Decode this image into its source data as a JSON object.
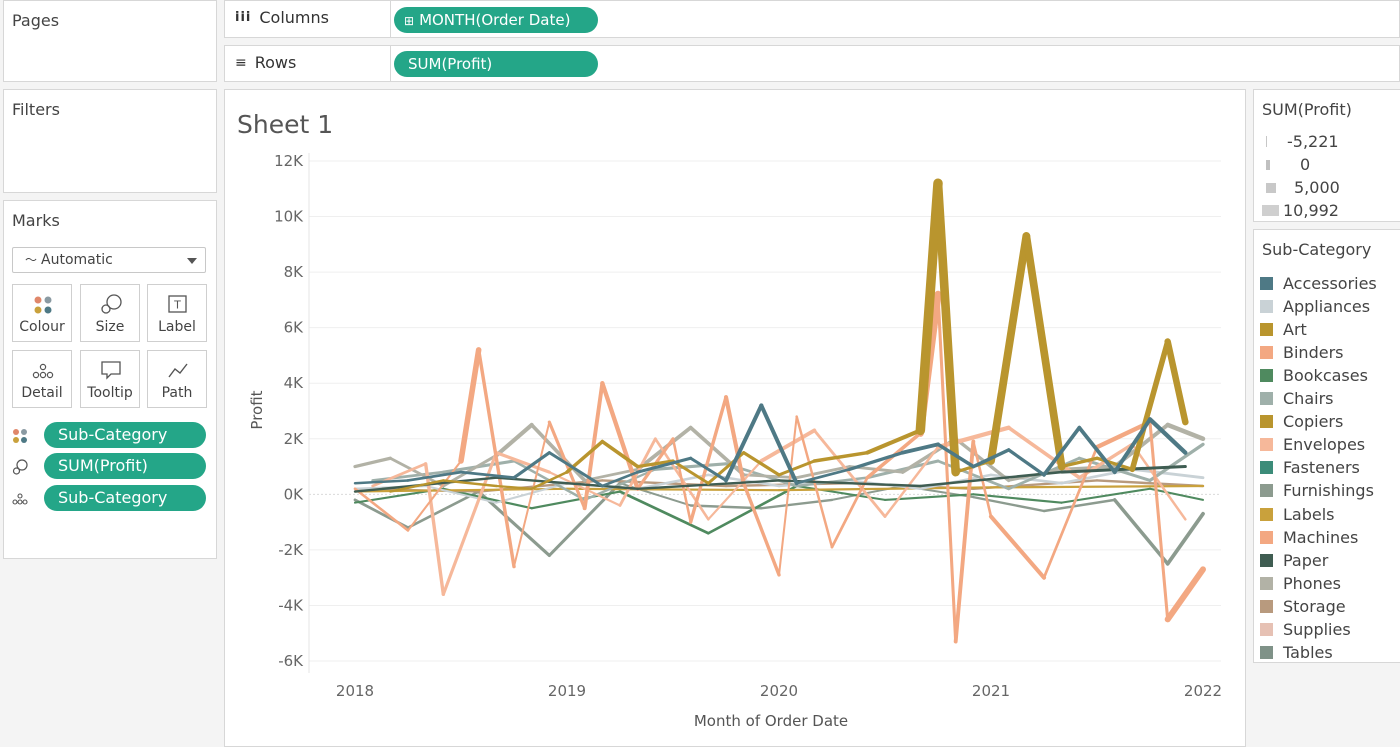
{
  "pages": {
    "title": "Pages"
  },
  "filters": {
    "title": "Filters"
  },
  "columns_shelf": {
    "label": "Columns",
    "pill": "MONTH(Order Date)"
  },
  "rows_shelf": {
    "label": "Rows",
    "pill": "SUM(Profit)"
  },
  "marks": {
    "title": "Marks",
    "type_select": "Automatic",
    "buttons": {
      "colour": "Colour",
      "size": "Size",
      "label": "Label",
      "detail": "Detail",
      "tooltip": "Tooltip",
      "path": "Path"
    },
    "pills": {
      "colour": "Sub-Category",
      "size": "SUM(Profit)",
      "detail": "Sub-Category"
    }
  },
  "sheet": {
    "title": "Sheet 1"
  },
  "size_legend": {
    "title": "SUM(Profit)",
    "items": [
      "-5,221",
      "0",
      "5,000",
      "10,992"
    ]
  },
  "colors": {
    "pill": "#24a688"
  },
  "chart_data": {
    "type": "line",
    "xlabel": "Month of Order Date",
    "ylabel": "Profit",
    "x_ticks": [
      "2018",
      "2019",
      "2020",
      "2021",
      "2022"
    ],
    "y_ticks": [
      "12K",
      "10K",
      "8K",
      "6K",
      "4K",
      "2K",
      "0K",
      "-2K",
      "-4K",
      "-6K"
    ],
    "ylim": [
      -6000,
      12000
    ],
    "xlim": [
      "2018-01",
      "2022-01"
    ],
    "grid": true,
    "legend": {
      "title": "Sub-Category",
      "placement": "right",
      "entries": [
        "Accessories",
        "Appliances",
        "Art",
        "Binders",
        "Bookcases",
        "Chairs",
        "Copiers",
        "Envelopes",
        "Fasteners",
        "Furnishings",
        "Labels",
        "Machines",
        "Paper",
        "Phones",
        "Storage",
        "Supplies",
        "Tables"
      ]
    },
    "series": [
      {
        "name": "Copiers",
        "color": "#b9952e",
        "x": [
          "2018-03",
          "2018-06",
          "2018-09",
          "2018-11",
          "2019-01",
          "2019-03",
          "2019-05",
          "2019-07",
          "2019-09",
          "2019-11",
          "2020-01",
          "2020-03",
          "2020-06",
          "2020-09",
          "2020-10",
          "2020-11",
          "2021-01",
          "2021-03",
          "2021-05",
          "2021-07",
          "2021-09",
          "2021-11",
          "2021-12"
        ],
        "values": [
          100,
          500,
          300,
          200,
          800,
          1900,
          1000,
          1200,
          400,
          1500,
          700,
          1200,
          1500,
          2300,
          11200,
          800,
          1200,
          9300,
          1000,
          1300,
          900,
          5500,
          2600
        ]
      },
      {
        "name": "Machines",
        "color": "#f3a882",
        "x": [
          "2018-01",
          "2018-04",
          "2018-07",
          "2018-08",
          "2018-10",
          "2018-12",
          "2019-02",
          "2019-03",
          "2019-05",
          "2019-07",
          "2019-08",
          "2019-10",
          "2019-11",
          "2020-01",
          "2020-02",
          "2020-04",
          "2020-06",
          "2020-09",
          "2020-10",
          "2020-11",
          "2020-12",
          "2021-01",
          "2021-04",
          "2021-07",
          "2021-10",
          "2021-11",
          "2022-01"
        ],
        "values": [
          200,
          -1300,
          1200,
          5200,
          -2600,
          2600,
          -500,
          4000,
          200,
          2000,
          -1000,
          3500,
          400,
          -2900,
          2800,
          -1900,
          600,
          2200,
          7200,
          -5300,
          1900,
          -800,
          -3000,
          1700,
          2600,
          -4500,
          -2700
        ]
      },
      {
        "name": "Binders",
        "color": "#f6b89a",
        "x": [
          "2018-02",
          "2018-05",
          "2018-06",
          "2018-09",
          "2018-12",
          "2019-04",
          "2019-06",
          "2019-09",
          "2019-12",
          "2020-03",
          "2020-07",
          "2020-10",
          "2021-02",
          "2021-06",
          "2021-09",
          "2021-12"
        ],
        "values": [
          300,
          1100,
          -3600,
          1500,
          800,
          -400,
          2000,
          -900,
          1200,
          2300,
          -800,
          1700,
          2400,
          600,
          1800,
          -900
        ]
      },
      {
        "name": "Accessories",
        "color": "#4e7985",
        "x": [
          "2018-01",
          "2018-04",
          "2018-07",
          "2018-10",
          "2018-12",
          "2019-03",
          "2019-05",
          "2019-08",
          "2019-10",
          "2019-12",
          "2020-02",
          "2020-05",
          "2020-08",
          "2020-10",
          "2020-12",
          "2021-02",
          "2021-04",
          "2021-06",
          "2021-08",
          "2021-10",
          "2021-12"
        ],
        "values": [
          400,
          500,
          800,
          600,
          1500,
          300,
          800,
          1300,
          500,
          3200,
          400,
          900,
          1500,
          1800,
          1000,
          1600,
          700,
          2400,
          800,
          2700,
          1500
        ]
      },
      {
        "name": "Phones",
        "color": "#b2b2a6",
        "x": [
          "2018-01",
          "2018-03",
          "2018-06",
          "2018-09",
          "2018-11",
          "2019-02",
          "2019-05",
          "2019-08",
          "2019-11",
          "2020-02",
          "2020-05",
          "2020-08",
          "2020-11",
          "2021-02",
          "2021-05",
          "2021-08",
          "2021-11",
          "2022-01"
        ],
        "values": [
          1000,
          1300,
          300,
          1400,
          2500,
          500,
          900,
          2400,
          700,
          600,
          1000,
          800,
          2000,
          500,
          900,
          1000,
          2500,
          2000
        ]
      },
      {
        "name": "Appliances",
        "color": "#c9d2d6",
        "x": [
          "2018-01",
          "2018-05",
          "2018-09",
          "2019-01",
          "2019-05",
          "2019-09",
          "2020-01",
          "2020-05",
          "2020-09",
          "2021-01",
          "2021-05",
          "2021-09",
          "2022-01"
        ],
        "values": [
          200,
          300,
          -300,
          400,
          200,
          700,
          300,
          500,
          200,
          700,
          400,
          900,
          600
        ]
      },
      {
        "name": "Chairs",
        "color": "#9fb0aa",
        "x": [
          "2018-02",
          "2018-06",
          "2018-10",
          "2019-02",
          "2019-06",
          "2019-10",
          "2020-02",
          "2020-06",
          "2020-10",
          "2021-02",
          "2021-06",
          "2021-10",
          "2022-01"
        ],
        "values": [
          500,
          800,
          1200,
          -200,
          900,
          1100,
          300,
          600,
          1200,
          200,
          1300,
          500,
          1800
        ]
      },
      {
        "name": "Tables",
        "color": "#8c9b8f",
        "x": [
          "2018-01",
          "2018-04",
          "2018-08",
          "2018-12",
          "2019-04",
          "2019-08",
          "2019-12",
          "2020-04",
          "2020-08",
          "2020-12",
          "2021-04",
          "2021-08",
          "2021-11",
          "2022-01"
        ],
        "values": [
          -200,
          -1200,
          100,
          -2200,
          400,
          -400,
          -500,
          -200,
          300,
          -100,
          -600,
          -200,
          -2500,
          -700
        ]
      },
      {
        "name": "Bookcases",
        "color": "#4f8a5f",
        "x": [
          "2018-01",
          "2018-06",
          "2018-11",
          "2019-04",
          "2019-09",
          "2020-02",
          "2020-07",
          "2020-12",
          "2021-05",
          "2021-10",
          "2022-01"
        ],
        "values": [
          -300,
          200,
          -500,
          100,
          -1400,
          300,
          -200,
          0,
          -300,
          200,
          -200
        ]
      },
      {
        "name": "Labels",
        "color": "#c9a13c",
        "x": [
          "2018-01",
          "2019-01",
          "2020-01",
          "2021-01",
          "2022-01"
        ],
        "values": [
          100,
          200,
          150,
          250,
          300
        ]
      },
      {
        "name": "Paper",
        "color": "#3f5d52",
        "x": [
          "2018-01",
          "2018-09",
          "2019-05",
          "2020-01",
          "2020-09",
          "2021-05",
          "2021-12"
        ],
        "values": [
          100,
          600,
          200,
          500,
          300,
          800,
          1000
        ]
      },
      {
        "name": "Storage",
        "color": "#b89a7e",
        "x": [
          "2018-01",
          "2018-08",
          "2019-03",
          "2019-10",
          "2020-05",
          "2020-12",
          "2021-07",
          "2022-01"
        ],
        "values": [
          200,
          100,
          500,
          300,
          400,
          200,
          500,
          300
        ]
      }
    ]
  }
}
